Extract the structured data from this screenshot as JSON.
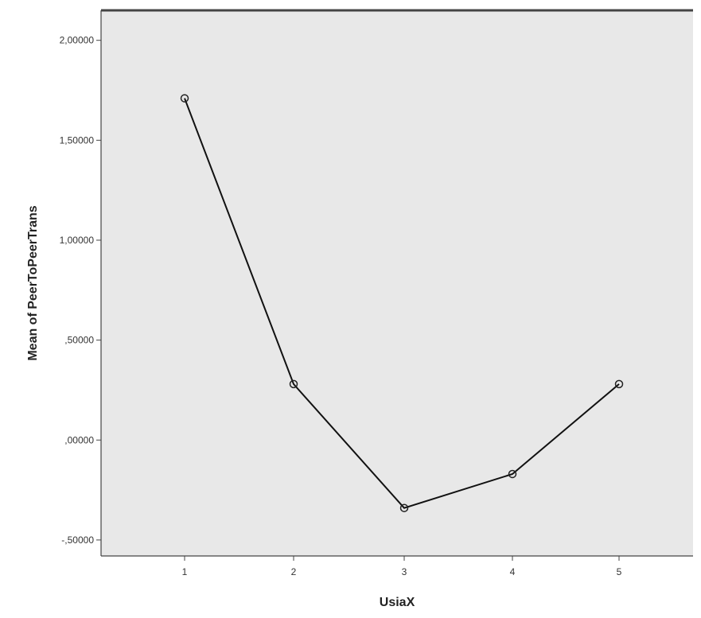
{
  "chart_data": {
    "type": "line",
    "title": "",
    "xlabel": "UsiaX",
    "ylabel": "Mean of PeerToPeerTrans",
    "categories": [
      "1",
      "2",
      "3",
      "4",
      "5"
    ],
    "series": [
      {
        "values": [
          1.71,
          0.28,
          -0.34,
          -0.17,
          0.28
        ]
      }
    ],
    "yticks": [
      {
        "value": -0.5,
        "label": "-,50000"
      },
      {
        "value": 0.0,
        "label": ",00000"
      },
      {
        "value": 0.5,
        "label": ",50000"
      },
      {
        "value": 1.0,
        "label": "1,00000"
      },
      {
        "value": 1.5,
        "label": "1,50000"
      },
      {
        "value": 2.0,
        "label": "2,00000"
      }
    ],
    "ylim": [
      -0.58,
      2.15
    ],
    "grid": false,
    "legend": "none",
    "colors": {
      "plot_background": "#e8e8e8",
      "line": "#111111",
      "axis": "#444444"
    }
  }
}
